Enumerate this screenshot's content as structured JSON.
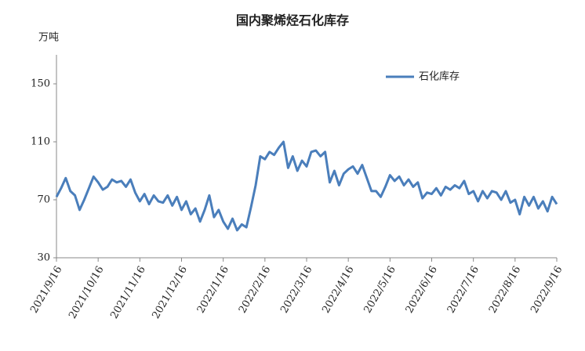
{
  "chart_data": {
    "type": "line",
    "title": "国内聚烯烃石化库存",
    "y_label": "万吨",
    "categories": [
      "2021/9/16",
      null,
      null,
      null,
      null,
      null,
      null,
      null,
      null,
      "2021/10/16",
      null,
      null,
      null,
      null,
      null,
      null,
      null,
      null,
      "2021/11/16",
      null,
      null,
      null,
      null,
      null,
      null,
      null,
      null,
      "2021/12/16",
      null,
      null,
      null,
      null,
      null,
      null,
      null,
      null,
      "2022/1/16",
      null,
      null,
      null,
      null,
      null,
      null,
      null,
      null,
      "2022/2/16",
      null,
      null,
      null,
      null,
      null,
      null,
      null,
      null,
      "2022/3/16",
      null,
      null,
      null,
      null,
      null,
      null,
      null,
      null,
      "2022/4/16",
      null,
      null,
      null,
      null,
      null,
      null,
      null,
      null,
      "2022/5/16",
      null,
      null,
      null,
      null,
      null,
      null,
      null,
      null,
      "2022/6/16",
      null,
      null,
      null,
      null,
      null,
      null,
      null,
      null,
      "2022/7/16",
      null,
      null,
      null,
      null,
      null,
      null,
      null,
      null,
      "2022/8/16",
      null,
      null,
      null,
      null,
      null,
      null,
      null,
      null,
      "2022/9/16"
    ],
    "series": [
      {
        "name": "石化库存",
        "color": "#4a7ebb",
        "values": [
          72,
          78,
          85,
          76,
          73,
          63,
          70,
          78,
          86,
          82,
          77,
          79,
          84,
          82,
          83,
          79,
          84,
          75,
          69,
          74,
          67,
          73,
          69,
          68,
          73,
          66,
          72,
          63,
          69,
          60,
          64,
          55,
          63,
          73,
          58,
          63,
          55,
          50,
          57,
          49,
          53,
          51,
          65,
          80,
          100,
          98,
          103,
          101,
          106,
          110,
          92,
          100,
          90,
          97,
          93,
          103,
          104,
          100,
          103,
          82,
          90,
          80,
          88,
          91,
          93,
          88,
          94,
          85,
          76,
          76,
          72,
          79,
          87,
          83,
          86,
          80,
          84,
          79,
          82,
          71,
          75,
          74,
          78,
          73,
          79,
          77,
          80,
          78,
          83,
          74,
          76,
          69,
          76,
          71,
          76,
          75,
          70,
          76,
          68,
          70,
          60,
          72,
          66,
          72,
          64,
          69,
          62,
          72,
          67
        ]
      }
    ],
    "ylim": [
      30,
      170
    ],
    "yticks": [
      30,
      70,
      110,
      150
    ],
    "grid": false,
    "legend": "top-right"
  }
}
